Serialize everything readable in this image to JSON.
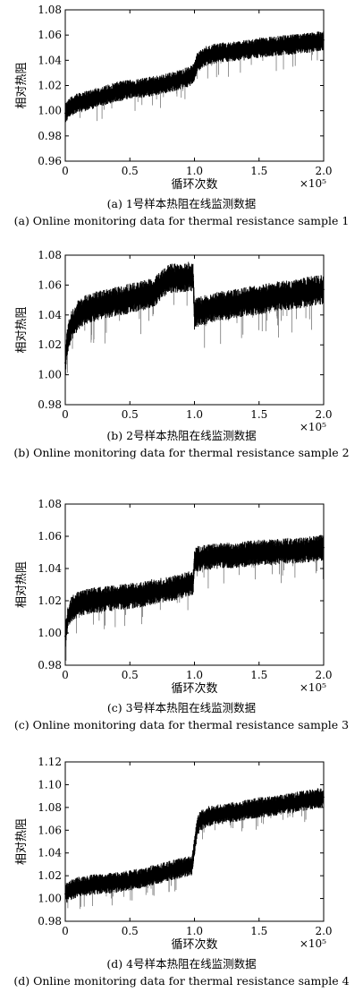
{
  "chart_data": [
    {
      "type": "line",
      "title": "",
      "xlabel": "循环次数",
      "ylabel": "相对热阻",
      "x_multiplier": "×10⁵",
      "xlim": [
        0,
        2.0
      ],
      "ylim": [
        0.96,
        1.08
      ],
      "x_ticks": [
        "0",
        "0.5",
        "1.0",
        "1.5",
        "2.0"
      ],
      "y_ticks": [
        "0.96",
        "0.98",
        "1.00",
        "1.02",
        "1.04",
        "1.06",
        "1.08"
      ],
      "caption_cn": "(a) 1号样本热阻在线监测数据",
      "caption_en": "(a) Online monitoring data for thermal resistance sample 1",
      "series": [
        {
          "x": [
            0,
            0.05,
            0.1,
            0.2,
            0.3,
            0.4,
            0.5,
            0.6,
            0.7,
            0.8,
            0.9,
            0.98,
            1.0,
            1.02,
            1.05,
            1.1,
            1.2,
            1.3,
            1.4,
            1.5,
            1.6,
            1.7,
            1.8,
            1.9,
            2.0
          ],
          "y": [
            0.998,
            1.004,
            1.006,
            1.009,
            1.012,
            1.015,
            1.017,
            1.018,
            1.02,
            1.022,
            1.025,
            1.028,
            1.031,
            1.038,
            1.041,
            1.044,
            1.046,
            1.047,
            1.048,
            1.05,
            1.051,
            1.052,
            1.053,
            1.054,
            1.056
          ]
        }
      ]
    },
    {
      "type": "line",
      "title": "",
      "xlabel": "",
      "ylabel": "相对热阻",
      "x_multiplier": "×10⁵",
      "xlim": [
        0,
        2.0
      ],
      "ylim": [
        0.98,
        1.08
      ],
      "x_ticks": [
        "0",
        "0.5",
        "1.0",
        "1.5",
        "2.0"
      ],
      "y_ticks": [
        "0.98",
        "1.00",
        "1.02",
        "1.04",
        "1.06",
        "1.08"
      ],
      "caption_cn": "(b) 2号样本热阻在线监测数据",
      "caption_en": "(b) Online monitoring data for thermal resistance sample 2",
      "series": [
        {
          "x": [
            0,
            0.02,
            0.05,
            0.1,
            0.15,
            0.2,
            0.3,
            0.4,
            0.5,
            0.6,
            0.7,
            0.75,
            0.8,
            0.9,
            0.99,
            1.0,
            1.02,
            1.1,
            1.2,
            1.3,
            1.4,
            1.5,
            1.6,
            1.7,
            1.8,
            1.9,
            2.0
          ],
          "y": [
            1.008,
            1.025,
            1.033,
            1.04,
            1.043,
            1.045,
            1.047,
            1.049,
            1.051,
            1.053,
            1.056,
            1.061,
            1.064,
            1.065,
            1.066,
            1.04,
            1.042,
            1.044,
            1.046,
            1.047,
            1.049,
            1.05,
            1.052,
            1.053,
            1.054,
            1.056,
            1.057
          ]
        }
      ]
    },
    {
      "type": "line",
      "title": "",
      "xlabel": "循环次数",
      "ylabel": "相对热阻",
      "x_multiplier": "×10⁵",
      "xlim": [
        0,
        2.0
      ],
      "ylim": [
        0.98,
        1.08
      ],
      "x_ticks": [
        "0",
        "0.5",
        "1.0",
        "1.5",
        "2.0"
      ],
      "y_ticks": [
        "0.98",
        "1.00",
        "1.02",
        "1.04",
        "1.06",
        "1.08"
      ],
      "caption_cn": "(c) 3号样本热阻在线监测数据",
      "caption_en": "(c) Online monitoring data for thermal resistance sample 3",
      "series": [
        {
          "x": [
            0,
            0.02,
            0.05,
            0.1,
            0.2,
            0.3,
            0.4,
            0.5,
            0.6,
            0.7,
            0.8,
            0.9,
            0.99,
            1.0,
            1.02,
            1.1,
            1.2,
            1.3,
            1.4,
            1.5,
            1.6,
            1.7,
            1.8,
            1.9,
            2.0
          ],
          "y": [
            0.998,
            1.01,
            1.015,
            1.018,
            1.02,
            1.021,
            1.022,
            1.023,
            1.024,
            1.026,
            1.027,
            1.029,
            1.031,
            1.044,
            1.046,
            1.047,
            1.048,
            1.048,
            1.049,
            1.05,
            1.05,
            1.051,
            1.051,
            1.052,
            1.053
          ]
        }
      ]
    },
    {
      "type": "line",
      "title": "",
      "xlabel": "循环次数",
      "ylabel": "相对热阻",
      "x_multiplier": "×10⁵",
      "xlim": [
        0,
        2.0
      ],
      "ylim": [
        0.98,
        1.12
      ],
      "x_ticks": [
        "0",
        "0.5",
        "1.0",
        "1.5",
        "2.0"
      ],
      "y_ticks": [
        "0.98",
        "1.00",
        "1.02",
        "1.04",
        "1.06",
        "1.08",
        "1.10",
        "1.12"
      ],
      "caption_cn": "(d) 4号样本热阻在线监测数据",
      "caption_en": "(d) Online monitoring data for thermal resistance sample 4",
      "series": [
        {
          "x": [
            0,
            0.05,
            0.1,
            0.2,
            0.3,
            0.4,
            0.5,
            0.6,
            0.7,
            0.8,
            0.9,
            0.98,
            1.0,
            1.02,
            1.04,
            1.1,
            1.2,
            1.3,
            1.4,
            1.5,
            1.6,
            1.7,
            1.8,
            1.9,
            2.0
          ],
          "y": [
            1.004,
            1.008,
            1.01,
            1.012,
            1.013,
            1.014,
            1.016,
            1.018,
            1.021,
            1.024,
            1.027,
            1.029,
            1.045,
            1.062,
            1.068,
            1.072,
            1.074,
            1.076,
            1.078,
            1.08,
            1.081,
            1.083,
            1.085,
            1.087,
            1.089
          ]
        }
      ]
    }
  ]
}
